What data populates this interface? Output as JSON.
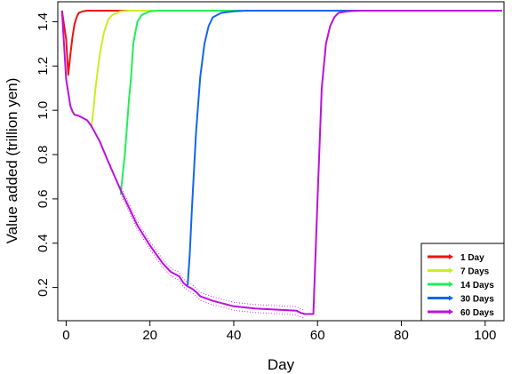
{
  "chart_data": {
    "type": "line",
    "xlabel": "Day",
    "ylabel": "Value added (trillion yen)",
    "xlim": [
      -2,
      104.5
    ],
    "ylim": [
      0.05,
      1.49
    ],
    "xticks": [
      0,
      20,
      40,
      60,
      80,
      100
    ],
    "yticks": [
      0.2,
      0.4,
      0.6,
      0.8,
      1.0,
      1.2,
      1.4
    ],
    "ytick_labels": [
      "0.2",
      "0.4",
      "0.6",
      "0.8",
      "1.0",
      "1.2",
      "1.4"
    ],
    "grid": false,
    "legend_position": "bottom-right",
    "series": [
      {
        "name": "1 Day",
        "color": "#ee1111",
        "x": [
          -1,
          0,
          0.5,
          1,
          1.5,
          2,
          2.5,
          3,
          4,
          5,
          6,
          8,
          104
        ],
        "y": [
          1.45,
          1.32,
          1.16,
          1.25,
          1.33,
          1.39,
          1.42,
          1.44,
          1.447,
          1.45,
          1.45,
          1.45,
          1.45
        ]
      },
      {
        "name": "7 Days",
        "color": "#ccee22",
        "x": [
          6,
          6.5,
          7,
          8,
          9,
          10,
          11,
          13,
          15,
          104
        ],
        "y": [
          0.92,
          1.0,
          1.1,
          1.25,
          1.35,
          1.41,
          1.43,
          1.447,
          1.45,
          1.45
        ]
      },
      {
        "name": "14 Days",
        "color": "#22ee55",
        "x": [
          13,
          14,
          15,
          15.5,
          16,
          17,
          18,
          20,
          22,
          104
        ],
        "y": [
          0.62,
          0.8,
          1.05,
          1.15,
          1.3,
          1.4,
          1.43,
          1.447,
          1.45,
          1.45
        ]
      },
      {
        "name": "30 Days",
        "color": "#1166ee",
        "x": [
          29,
          29.5,
          30,
          31,
          32,
          33,
          34,
          35,
          37,
          40,
          43,
          104
        ],
        "y": [
          0.21,
          0.35,
          0.55,
          0.9,
          1.15,
          1.3,
          1.38,
          1.42,
          1.44,
          1.447,
          1.45,
          1.45
        ]
      },
      {
        "name": "60 Days",
        "color": "#bb11dd",
        "x": [
          -1,
          0,
          0.5,
          1,
          1.5,
          2,
          3,
          5,
          6,
          8,
          10,
          13,
          15,
          17,
          20,
          23,
          25,
          27,
          28,
          29,
          30,
          31,
          32,
          35,
          38,
          40,
          45,
          50,
          55,
          56,
          57,
          58,
          59,
          60,
          61,
          62,
          63,
          64,
          65,
          67,
          70,
          75,
          104
        ],
        "y": [
          1.45,
          1.14,
          1.08,
          1.02,
          0.995,
          0.98,
          0.975,
          0.955,
          0.93,
          0.86,
          0.77,
          0.64,
          0.56,
          0.48,
          0.39,
          0.31,
          0.27,
          0.25,
          0.22,
          0.205,
          0.195,
          0.18,
          0.16,
          0.14,
          0.125,
          0.115,
          0.105,
          0.1,
          0.095,
          0.085,
          0.08,
          0.08,
          0.08,
          0.6,
          1.1,
          1.3,
          1.38,
          1.42,
          1.44,
          1.447,
          1.45,
          1.45,
          1.45
        ]
      }
    ]
  }
}
